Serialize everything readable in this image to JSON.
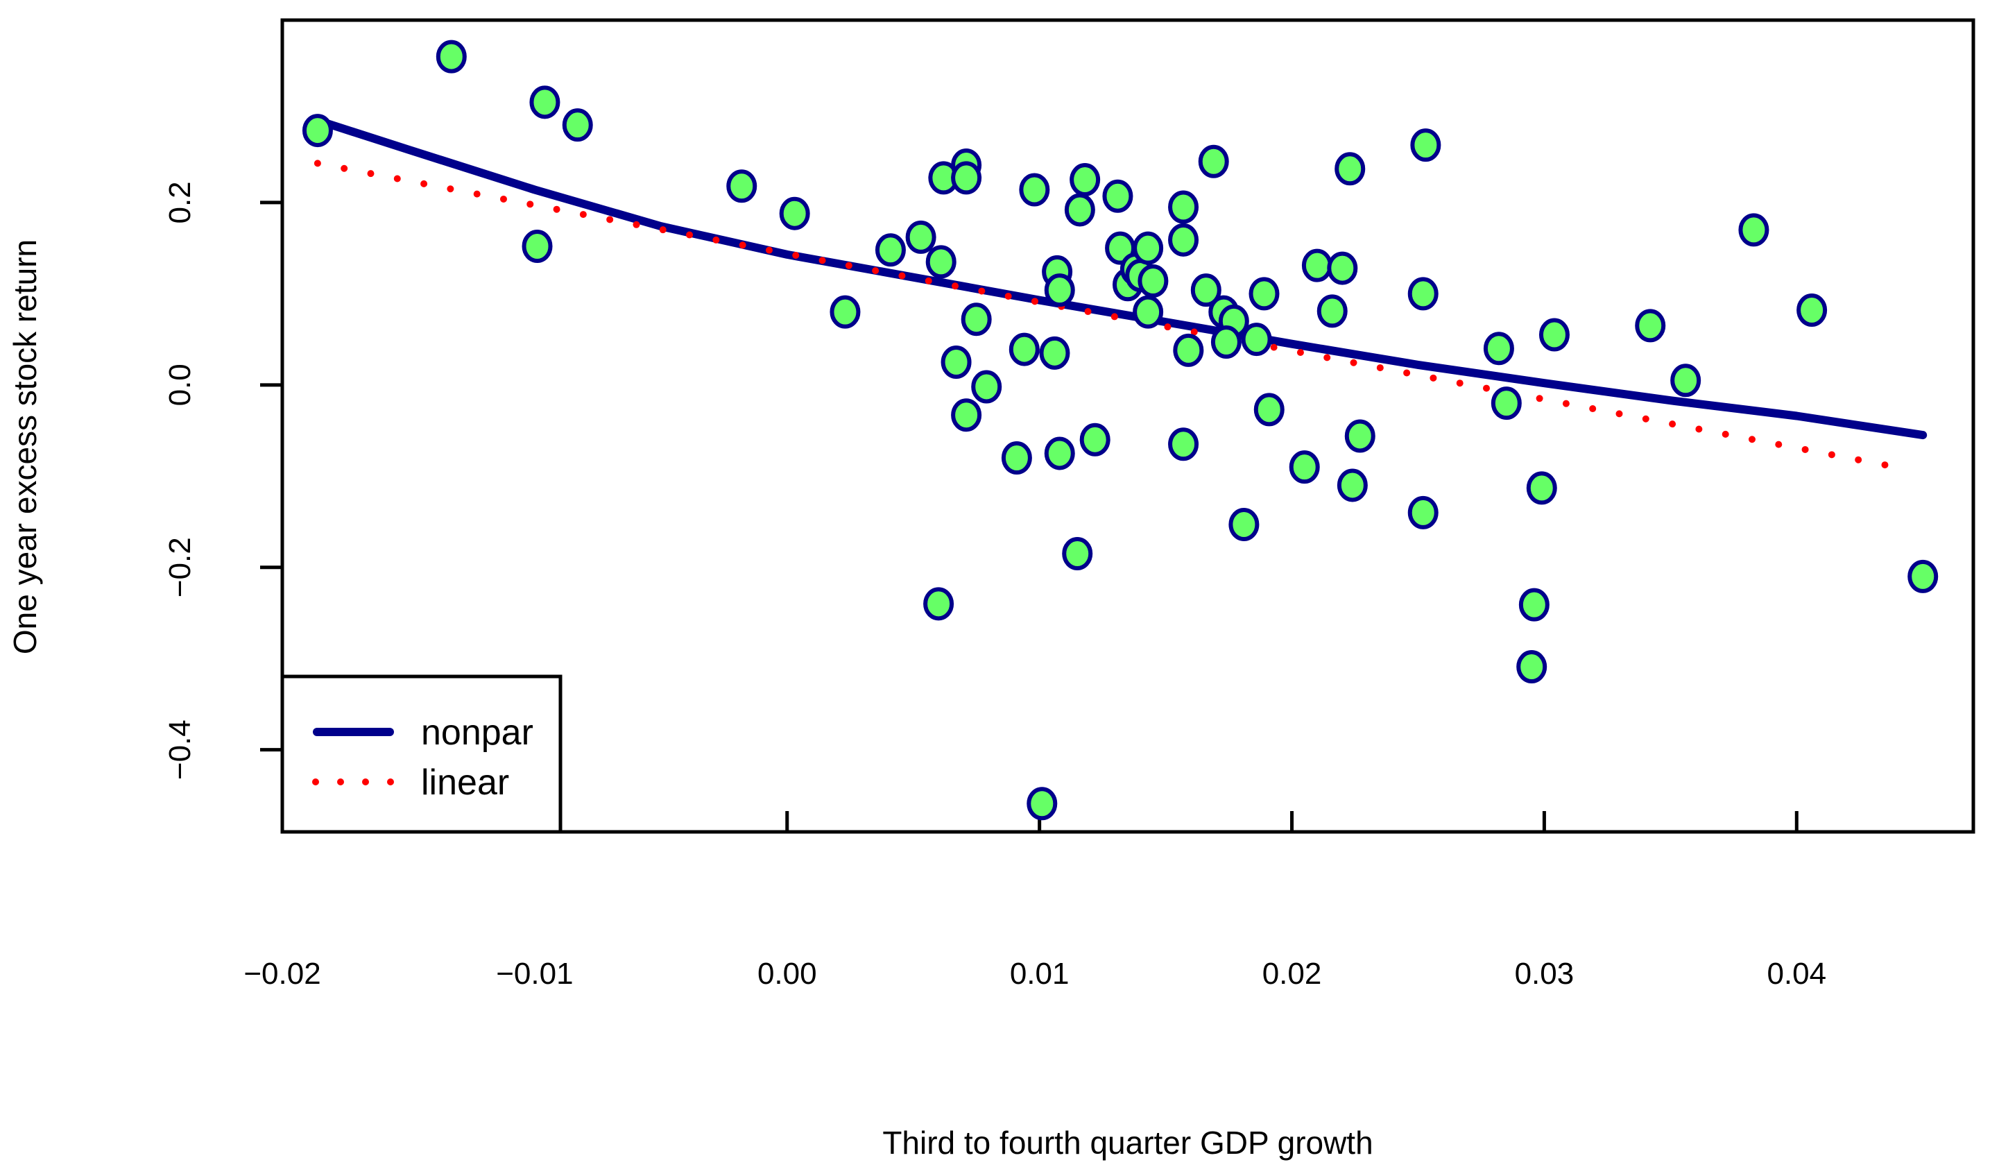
{
  "chart_data": {
    "type": "scatter",
    "xlabel": "Third to fourth quarter GDP growth",
    "ylabel": "One year excess stock return",
    "xlim": [
      -0.02,
      0.047
    ],
    "ylim": [
      -0.49,
      0.4
    ],
    "xticks": [
      -0.02,
      -0.01,
      0.0,
      0.01,
      0.02,
      0.03,
      0.04
    ],
    "xtick_labels": [
      "−0.02",
      "−0.01",
      "0.00",
      "0.01",
      "0.02",
      "0.03",
      "0.04"
    ],
    "yticks": [
      0.2,
      0.0,
      -0.2,
      -0.4
    ],
    "ytick_labels": [
      "0.2",
      "0.0",
      "−0.2",
      "−0.4"
    ],
    "grid": false,
    "legend": {
      "position": "bottom-left",
      "entries": [
        {
          "label": "nonpar",
          "style": "solid",
          "color": "#00008B"
        },
        {
          "label": "linear",
          "style": "dotted",
          "color": "#FF0000"
        }
      ]
    },
    "colors": {
      "point_fill": "#66FF66",
      "point_stroke": "#00008B",
      "nonpar": "#00008B",
      "linear": "#FF0000",
      "axes": "#000000"
    },
    "series": [
      {
        "name": "data",
        "type": "scatter",
        "points": [
          [
            -0.0186,
            0.279
          ],
          [
            -0.0133,
            0.36
          ],
          [
            -0.0096,
            0.31
          ],
          [
            -0.0083,
            0.285
          ],
          [
            -0.0099,
            0.152
          ],
          [
            -0.0018,
            0.218
          ],
          [
            0.0003,
            0.188
          ],
          [
            0.0023,
            0.08
          ],
          [
            0.0041,
            0.148
          ],
          [
            0.0053,
            0.162
          ],
          [
            0.0062,
            0.227
          ],
          [
            0.0071,
            0.241
          ],
          [
            0.0071,
            0.227
          ],
          [
            0.0061,
            0.135
          ],
          [
            0.0067,
            0.025
          ],
          [
            0.0071,
            -0.033
          ],
          [
            0.0075,
            0.072
          ],
          [
            0.0079,
            -0.002
          ],
          [
            0.006,
            -0.24
          ],
          [
            0.0091,
            -0.08
          ],
          [
            0.0094,
            0.039
          ],
          [
            0.0098,
            0.214
          ],
          [
            0.0107,
            0.124
          ],
          [
            0.0108,
            0.104
          ],
          [
            0.0106,
            0.035
          ],
          [
            0.0108,
            -0.075
          ],
          [
            0.0116,
            0.192
          ],
          [
            0.0118,
            0.225
          ],
          [
            0.0115,
            -0.185
          ],
          [
            0.0122,
            -0.06
          ],
          [
            0.0131,
            0.207
          ],
          [
            0.0132,
            0.15
          ],
          [
            0.0135,
            0.11
          ],
          [
            0.0138,
            0.127
          ],
          [
            0.014,
            0.12
          ],
          [
            0.0143,
            0.15
          ],
          [
            0.0145,
            0.114
          ],
          [
            0.0143,
            0.08
          ],
          [
            0.0101,
            -0.459
          ],
          [
            0.0157,
            0.195
          ],
          [
            0.0157,
            0.159
          ],
          [
            0.0159,
            0.038
          ],
          [
            0.0157,
            -0.065
          ],
          [
            0.0166,
            0.104
          ],
          [
            0.0169,
            0.245
          ],
          [
            0.0173,
            0.08
          ],
          [
            0.0177,
            0.07
          ],
          [
            0.0174,
            0.047
          ],
          [
            0.0186,
            0.05
          ],
          [
            0.0189,
            0.1
          ],
          [
            0.0191,
            -0.027
          ],
          [
            0.0181,
            -0.153
          ],
          [
            0.0205,
            -0.09
          ],
          [
            0.021,
            0.131
          ],
          [
            0.0216,
            0.081
          ],
          [
            0.022,
            0.128
          ],
          [
            0.0223,
            0.237
          ],
          [
            0.0227,
            -0.056
          ],
          [
            0.0224,
            -0.11
          ],
          [
            0.0253,
            0.263
          ],
          [
            0.0252,
            0.1
          ],
          [
            0.0252,
            -0.14
          ],
          [
            0.0282,
            0.04
          ],
          [
            0.0285,
            -0.02
          ],
          [
            0.0296,
            -0.241
          ],
          [
            0.0295,
            -0.309
          ],
          [
            0.0299,
            -0.113
          ],
          [
            0.0304,
            0.055
          ],
          [
            0.0342,
            0.065
          ],
          [
            0.0356,
            0.005
          ],
          [
            0.0383,
            0.17
          ],
          [
            0.0406,
            0.082
          ],
          [
            0.045,
            -0.21
          ]
        ]
      },
      {
        "name": "nonpar",
        "type": "line",
        "points": [
          [
            -0.0186,
            0.29
          ],
          [
            -0.015,
            0.258
          ],
          [
            -0.01,
            0.214
          ],
          [
            -0.005,
            0.174
          ],
          [
            0.0,
            0.143
          ],
          [
            0.005,
            0.118
          ],
          [
            0.01,
            0.093
          ],
          [
            0.015,
            0.069
          ],
          [
            0.02,
            0.045
          ],
          [
            0.025,
            0.022
          ],
          [
            0.03,
            0.002
          ],
          [
            0.035,
            -0.017
          ],
          [
            0.04,
            -0.034
          ],
          [
            0.045,
            -0.055
          ]
        ]
      },
      {
        "name": "linear",
        "type": "line",
        "points": [
          [
            -0.0186,
            0.243
          ],
          [
            0.0445,
            -0.093
          ]
        ]
      }
    ]
  }
}
